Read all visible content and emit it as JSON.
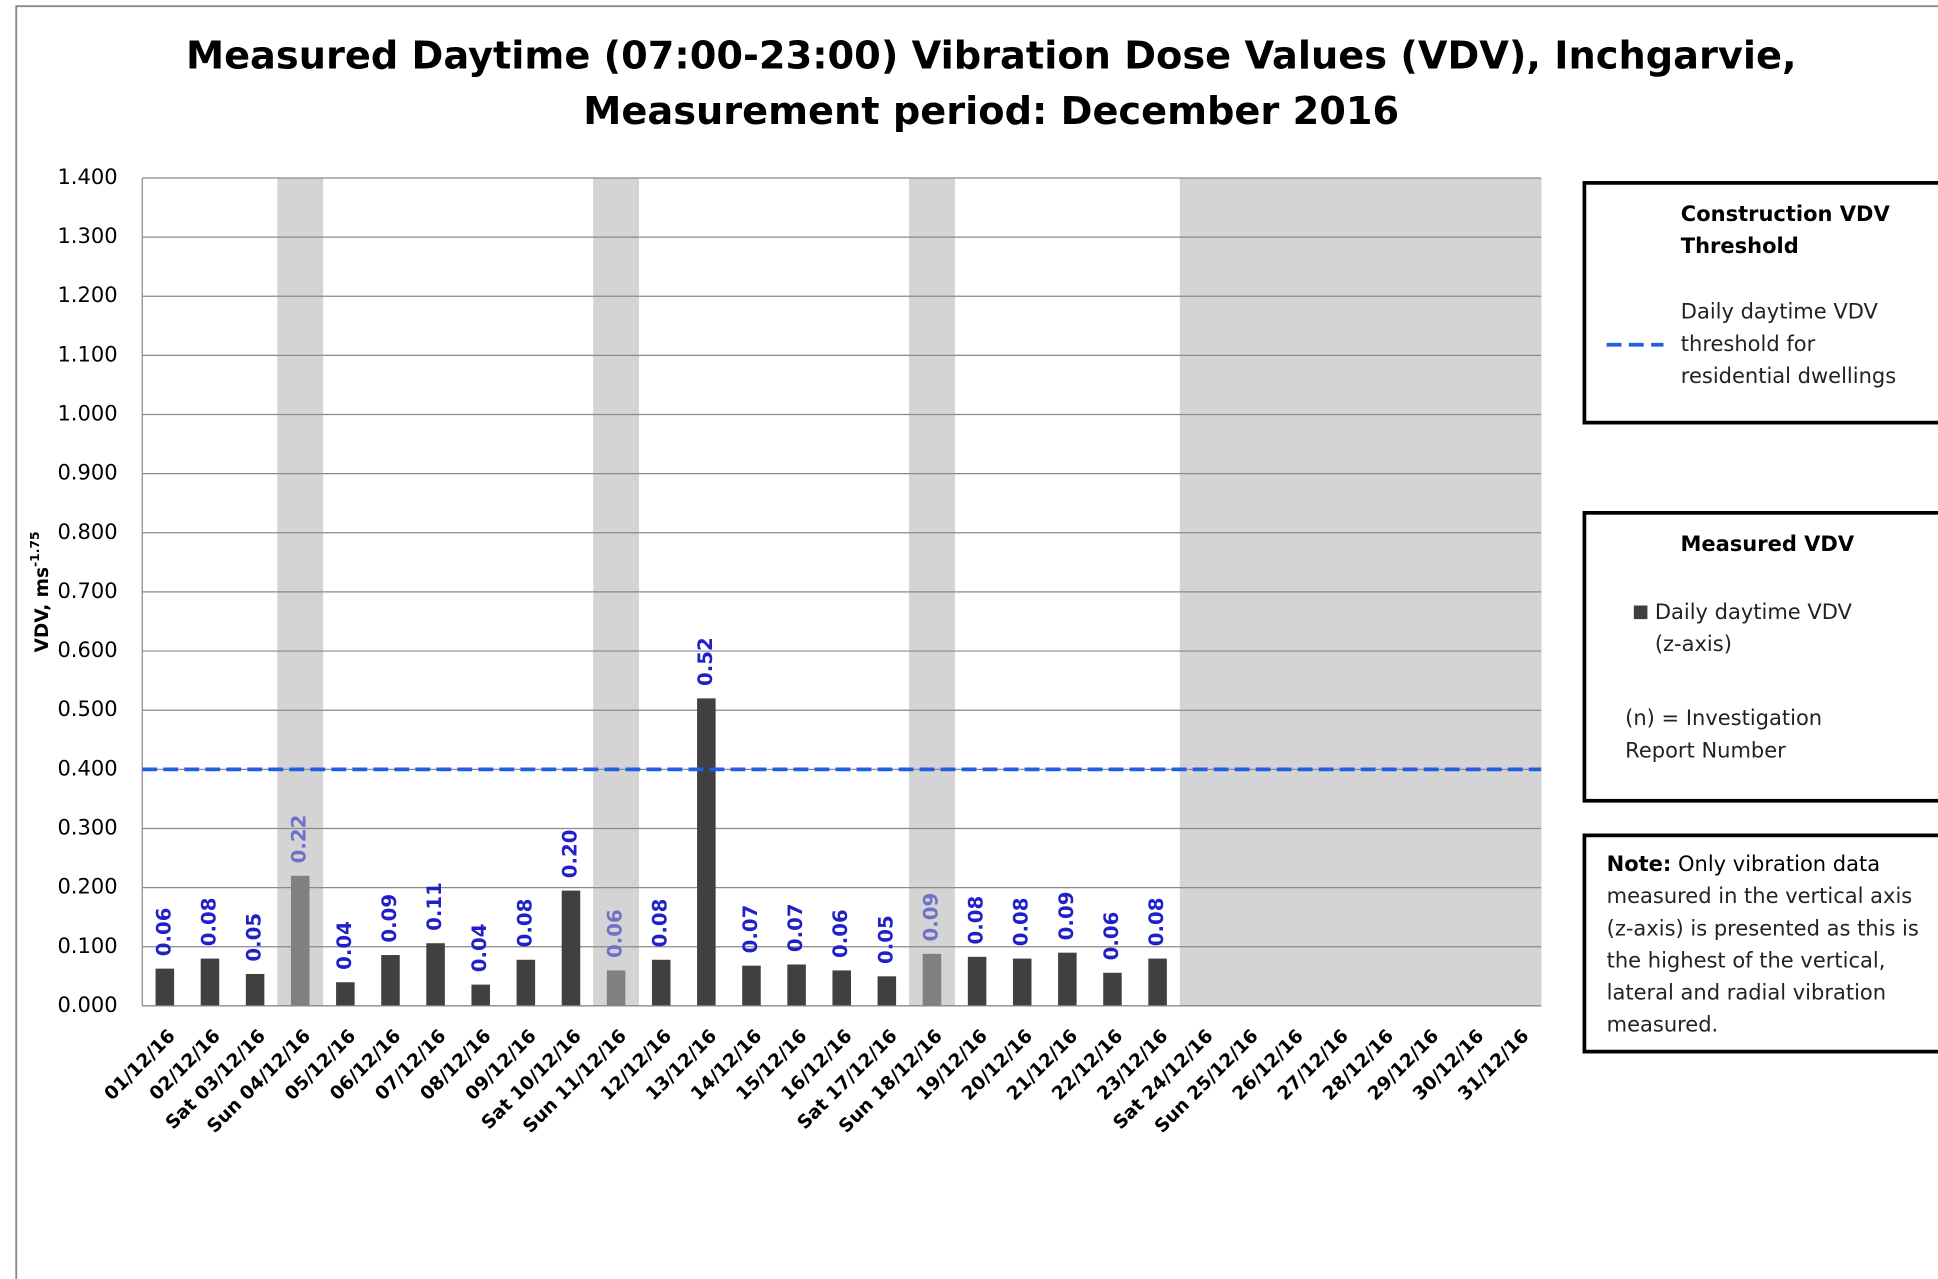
{
  "chart_data": {
    "type": "bar",
    "title": [
      "Measured Daytime (07:00-23:00) Vibration Dose Values (VDV), Inchgarvie,",
      "Measurement period: December 2016"
    ],
    "y_label": "VDV, ms",
    "y_label_superscript": "-1.75",
    "categories": [
      "01/12/16",
      "02/12/16",
      "Sat 03/12/16",
      "Sun 04/12/16",
      "05/12/16",
      "06/12/16",
      "07/12/16",
      "08/12/16",
      "09/12/16",
      "Sat 10/12/16",
      "Sun 11/12/16",
      "12/12/16",
      "13/12/16",
      "14/12/16",
      "15/12/16",
      "16/12/16",
      "Sat 17/12/16",
      "Sun 18/12/16",
      "19/12/16",
      "20/12/16",
      "21/12/16",
      "22/12/16",
      "23/12/16",
      "Sat 24/12/16",
      "Sun 25/12/16",
      "26/12/16",
      "27/12/16",
      "28/12/16",
      "29/12/16",
      "30/12/16",
      "31/12/16"
    ],
    "series": [
      {
        "name": [
          "Daily daytime VDV",
          "(z-axis)"
        ],
        "color": "#404040",
        "colors": [
          "#404040",
          "#404040",
          "#404040",
          "#808080",
          "#404040",
          "#404040",
          "#404040",
          "#404040",
          "#404040",
          "#404040",
          "#808080",
          "#404040",
          "#404040",
          "#404040",
          "#404040",
          "#404040",
          "#404040",
          "#808080",
          "#404040",
          "#404040",
          "#404040",
          "#404040",
          "#404040",
          null,
          null,
          null,
          null,
          null,
          null,
          null,
          null
        ],
        "label_colors": [
          "#2020c8",
          "#2020c8",
          "#2020c8",
          "#7070c8",
          "#2020c8",
          "#2020c8",
          "#2020c8",
          "#2020c8",
          "#2020c8",
          "#2020c8",
          "#7070c8",
          "#2020c8",
          "#2020c8",
          "#2020c8",
          "#2020c8",
          "#2020c8",
          "#2020c8",
          "#7070c8",
          "#2020c8",
          "#2020c8",
          "#2020c8",
          "#2020c8",
          "#2020c8",
          null,
          null,
          null,
          null,
          null,
          null,
          null,
          null
        ],
        "values": [
          0.063,
          0.08,
          0.054,
          0.22,
          0.04,
          0.086,
          0.106,
          0.036,
          0.078,
          0.195,
          0.06,
          0.078,
          0.52,
          0.068,
          0.07,
          0.06,
          0.05,
          0.088,
          0.083,
          0.08,
          0.09,
          0.056,
          0.08,
          null,
          null,
          null,
          null,
          null,
          null,
          null,
          null
        ],
        "value_labels": [
          "0.06",
          "0.08",
          "0.05",
          "0.22",
          "0.04",
          "0.09",
          "0.11",
          "0.04",
          "0.08",
          "0.20",
          "0.06",
          "0.08",
          "0.52",
          "0.07",
          "0.07",
          "0.06",
          "0.05",
          "0.09",
          "0.08",
          "0.08",
          "0.09",
          "0.06",
          "0.08",
          null,
          null,
          null,
          null,
          null,
          null,
          null,
          null
        ]
      }
    ],
    "shaded_categories": [
      3,
      10,
      17,
      23,
      24,
      25,
      26,
      27,
      28,
      29,
      30
    ],
    "shade_color": "#d4d4d4",
    "threshold": {
      "value": 0.4,
      "color": "#1f5fe0",
      "label": [
        "Daily daytime VDV",
        "threshold for",
        "residential dwellings"
      ]
    },
    "threshold_legend_title": [
      "Construction VDV",
      "Threshold"
    ],
    "measured_legend_title": "Measured VDV",
    "investigation_note": [
      "(n) = Investigation",
      "Report Number"
    ],
    "note_label": "Note:",
    "note_lines": [
      " Only vibration data",
      "measured in the vertical axis",
      "(z-axis) is presented as this is",
      "the highest of the vertical,",
      "lateral and radial vibration",
      "measured."
    ],
    "ylim": [
      0,
      1.4
    ],
    "yticks": [
      {
        "value": 0,
        "label": "0.000"
      },
      {
        "value": 0.1,
        "label": "0.100"
      },
      {
        "value": 0.2,
        "label": "0.200"
      },
      {
        "value": 0.3,
        "label": "0.300"
      },
      {
        "value": 0.4,
        "label": "0.400"
      },
      {
        "value": 0.5,
        "label": "0.500"
      },
      {
        "value": 0.6,
        "label": "0.600"
      },
      {
        "value": 0.7,
        "label": "0.700"
      },
      {
        "value": 0.8,
        "label": "0.800"
      },
      {
        "value": 0.9,
        "label": "0.900"
      },
      {
        "value": 1.0,
        "label": "1.000"
      },
      {
        "value": 1.1,
        "label": "1.100"
      },
      {
        "value": 1.2,
        "label": "1.200"
      },
      {
        "value": 1.3,
        "label": "1.300"
      },
      {
        "value": 1.4,
        "label": "1.400"
      }
    ],
    "grid": true
  }
}
